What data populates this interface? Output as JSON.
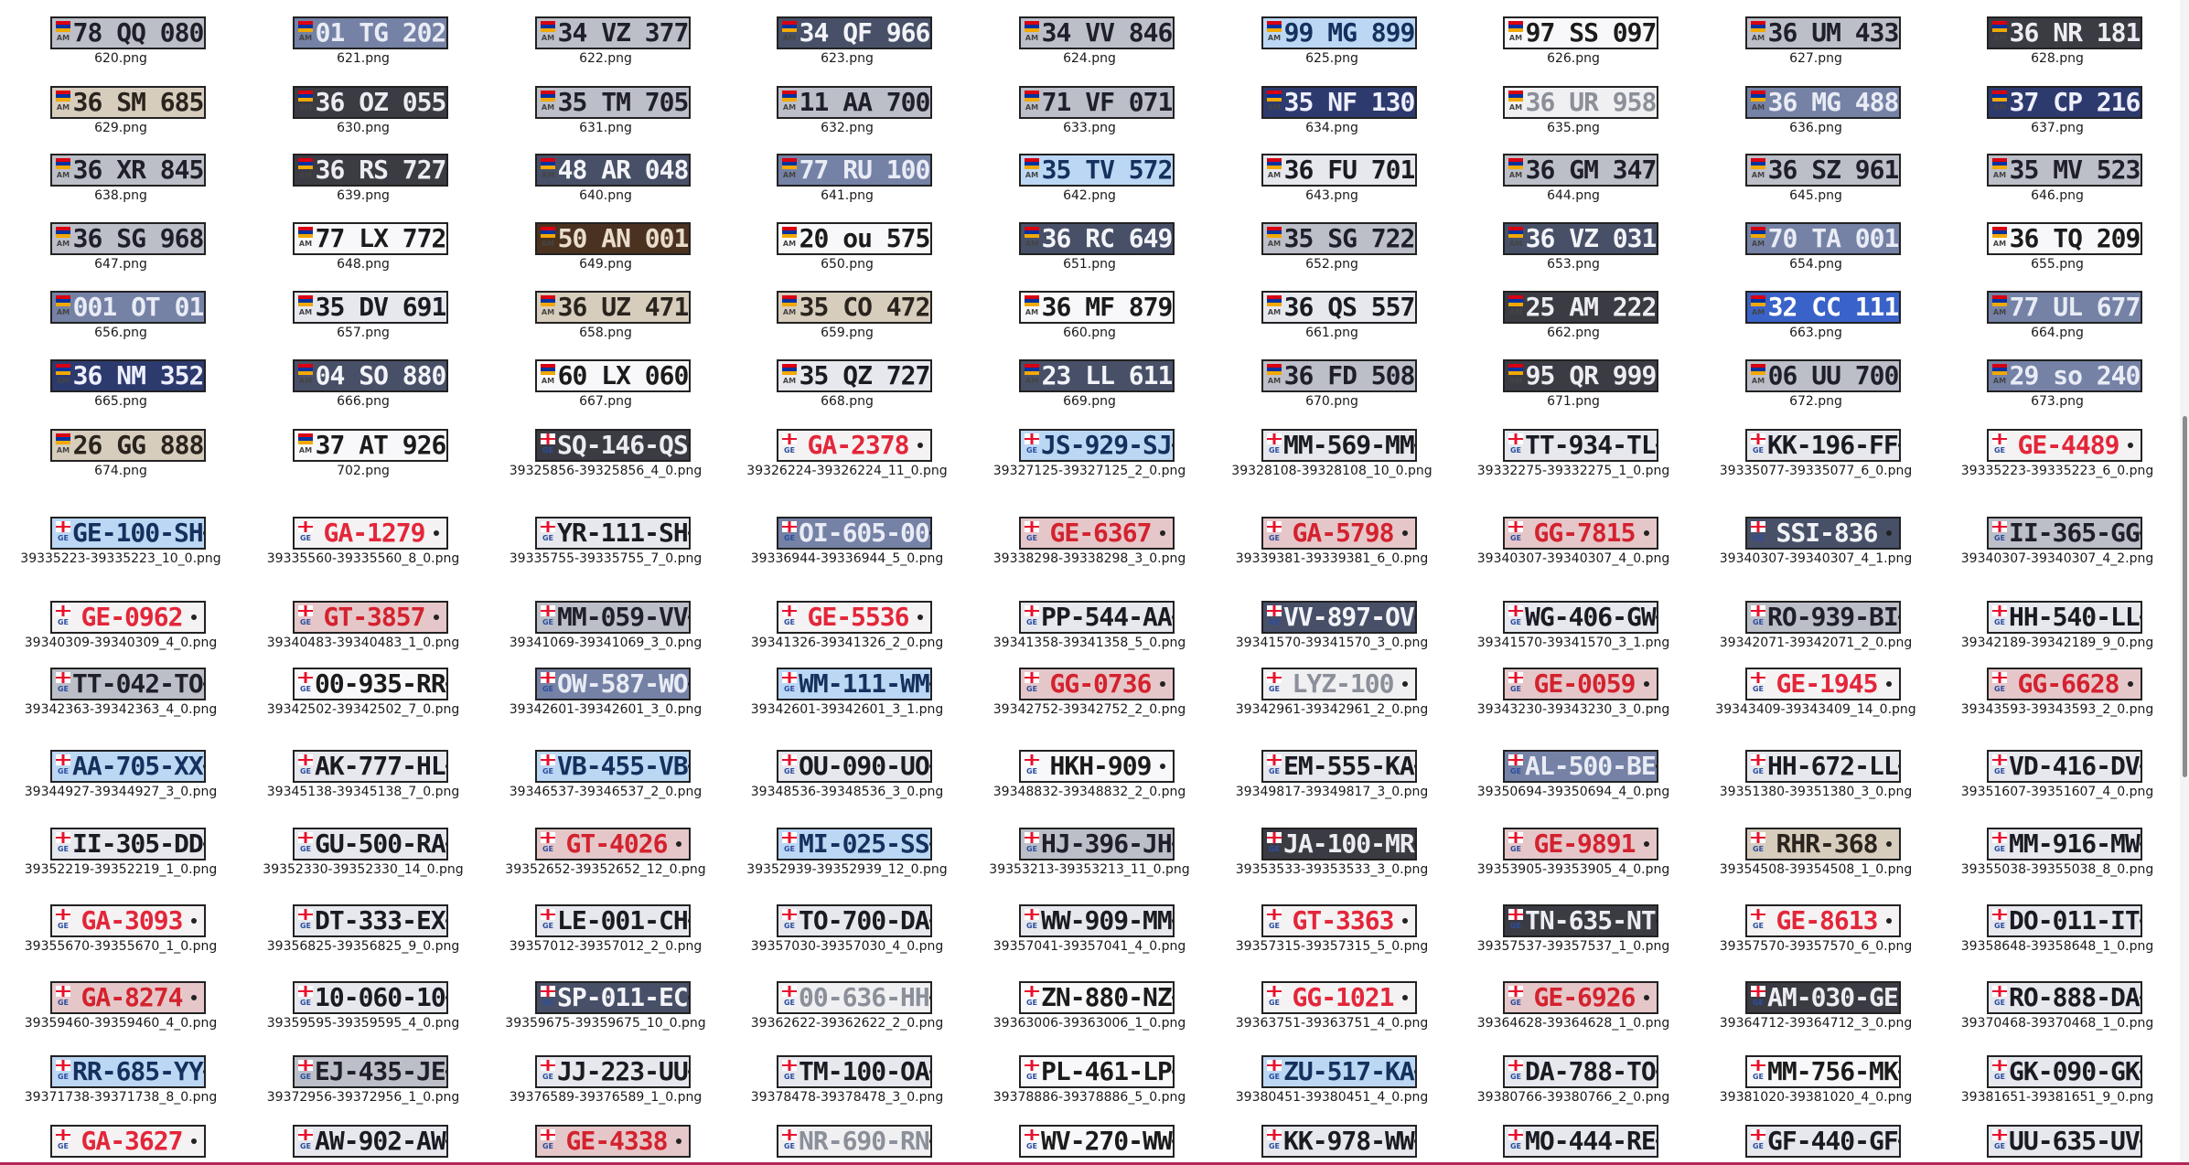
{
  "colors": {
    "gray": [
      "#bcbfc8",
      "#1f1f2a"
    ],
    "dark": [
      "#3b3b44",
      "#ececf2"
    ],
    "navy": [
      "#2d3a6e",
      "#eef0ff"
    ],
    "blue": [
      "#3a63c9",
      "#ffffff"
    ],
    "light": [
      "#e6e8ee",
      "#1a1a22"
    ],
    "white": [
      "#f8f8fa",
      "#1b1b1b"
    ],
    "brown": [
      "#4b3220",
      "#e9dccb"
    ],
    "beige": [
      "#d7cdbd",
      "#2a241e"
    ],
    "red": [
      "#f4f2f2",
      "#e3263a"
    ],
    "redpink": [
      "#e6c7c9",
      "#d3222f"
    ],
    "lightgray": [
      "#f0f0f2",
      "#8b8f99"
    ],
    "steel": [
      "#7582a6",
      "#e9ecf5"
    ],
    "slate": [
      "#485068",
      "#f3f4f8"
    ],
    "sky": [
      "#bcd7f4",
      "#14305c"
    ]
  },
  "rows": [
    [
      [
        "78 QQ 080",
        "620.png",
        "am",
        "gray"
      ],
      [
        "01 TG 202",
        "621.png",
        "am",
        "steel"
      ],
      [
        "34 VZ 377",
        "622.png",
        "am",
        "gray"
      ],
      [
        "34 QF 966",
        "623.png",
        "am",
        "slate"
      ],
      [
        "34 VV 846",
        "624.png",
        "am",
        "gray"
      ],
      [
        "99 MG 899",
        "625.png",
        "am",
        "sky"
      ],
      [
        "97 SS 097",
        "626.png",
        "am",
        "white"
      ],
      [
        "36 UM 433",
        "627.png",
        "am",
        "gray"
      ],
      [
        "36 NR 181",
        "628.png",
        "am",
        "dark"
      ]
    ],
    [
      [
        "36 SM 685",
        "629.png",
        "am",
        "beige"
      ],
      [
        "36 OZ 055",
        "630.png",
        "am",
        "dark"
      ],
      [
        "35 TM 705",
        "631.png",
        "am",
        "gray"
      ],
      [
        "11 AA 700",
        "632.png",
        "am",
        "gray"
      ],
      [
        "71 VF 071",
        "633.png",
        "am",
        "gray"
      ],
      [
        "35 NF 130",
        "634.png",
        "am",
        "navy"
      ],
      [
        "36 UR 958",
        "635.png",
        "am",
        "lightgray"
      ],
      [
        "36 MG 488",
        "636.png",
        "am",
        "steel"
      ],
      [
        "37 CP 216",
        "637.png",
        "am",
        "navy"
      ]
    ],
    [
      [
        "36 XR 845",
        "638.png",
        "am",
        "gray"
      ],
      [
        "36 RS 727",
        "639.png",
        "am",
        "dark"
      ],
      [
        "48 AR 048",
        "640.png",
        "am",
        "slate"
      ],
      [
        "77 RU 100",
        "641.png",
        "am",
        "steel"
      ],
      [
        "35 TV 572",
        "642.png",
        "am",
        "sky"
      ],
      [
        "36 FU 701",
        "643.png",
        "am",
        "light"
      ],
      [
        "36 GM 347",
        "644.png",
        "am",
        "gray"
      ],
      [
        "36 SZ 961",
        "645.png",
        "am",
        "gray"
      ],
      [
        "35 MV 523",
        "646.png",
        "am",
        "gray"
      ]
    ],
    [
      [
        "36 SG 968",
        "647.png",
        "am",
        "gray"
      ],
      [
        "77 LX 772",
        "648.png",
        "am",
        "white"
      ],
      [
        "50 AN 001",
        "649.png",
        "am",
        "brown"
      ],
      [
        "20 ou 575",
        "650.png",
        "am",
        "white"
      ],
      [
        "36 RC 649",
        "651.png",
        "am",
        "slate"
      ],
      [
        "35 SG 722",
        "652.png",
        "am",
        "gray"
      ],
      [
        "36 VZ 031",
        "653.png",
        "am",
        "slate"
      ],
      [
        "70 TA 001",
        "654.png",
        "am",
        "steel"
      ],
      [
        "36 TQ 209",
        "655.png",
        "am",
        "white"
      ]
    ],
    [
      [
        "001 OT 01",
        "656.png",
        "am",
        "steel"
      ],
      [
        "35 DV 691",
        "657.png",
        "am",
        "light"
      ],
      [
        "36 UZ 471",
        "658.png",
        "am",
        "beige"
      ],
      [
        "35 CO 472",
        "659.png",
        "am",
        "beige"
      ],
      [
        "36 MF 879",
        "660.png",
        "am",
        "white"
      ],
      [
        "36 QS 557",
        "661.png",
        "am",
        "light"
      ],
      [
        "25 AM 222",
        "662.png",
        "am",
        "dark"
      ],
      [
        "32 CC 111",
        "663.png",
        "am",
        "blue"
      ],
      [
        "77 UL 677",
        "664.png",
        "am",
        "steel"
      ]
    ],
    [
      [
        "36 NM 352",
        "665.png",
        "am",
        "navy"
      ],
      [
        "04 SO 880",
        "666.png",
        "am",
        "slate"
      ],
      [
        "60 LX 060",
        "667.png",
        "am",
        "white"
      ],
      [
        "35 QZ 727",
        "668.png",
        "am",
        "light"
      ],
      [
        "23 LL 611",
        "669.png",
        "am",
        "slate"
      ],
      [
        "36 FD 508",
        "670.png",
        "am",
        "gray"
      ],
      [
        "95 QR 999",
        "671.png",
        "am",
        "dark"
      ],
      [
        "06 UU 700",
        "672.png",
        "am",
        "gray"
      ],
      [
        "29 so 240",
        "673.png",
        "am",
        "steel"
      ]
    ],
    [
      [
        "26 GG 888",
        "674.png",
        "am",
        "beige"
      ],
      [
        "37 AT 926",
        "702.png",
        "am",
        "white"
      ],
      [
        "SQ-146-QS",
        "39325856-39325856_4_0.png",
        "ge",
        "dark"
      ],
      [
        "GA-2378",
        "39326224-39326224_11_0.png",
        "ge",
        "red"
      ],
      [
        "JS-929-SJ",
        "39327125-39327125_2_0.png",
        "ge",
        "sky"
      ],
      [
        "MM-569-MM",
        "39328108-39328108_10_0.png",
        "ge",
        "light"
      ],
      [
        "TT-934-TL",
        "39332275-39332275_1_0.png",
        "ge",
        "light"
      ],
      [
        "KK-196-FF",
        "39335077-39335077_6_0.png",
        "ge",
        "light"
      ],
      [
        "GE-4489",
        "39335223-39335223_6_0.png",
        "ge",
        "red"
      ]
    ],
    [
      [
        "GE-100-SH",
        "39335223-39335223_10_0.png",
        "ge",
        "sky"
      ],
      [
        "GA-1279",
        "39335560-39335560_8_0.png",
        "ge",
        "red"
      ],
      [
        "YR-111-SH",
        "39335755-39335755_7_0.png",
        "ge",
        "light"
      ],
      [
        "OI-605-00",
        "39336944-39336944_5_0.png",
        "ge",
        "steel"
      ],
      [
        "GE-6367",
        "39338298-39338298_3_0.png",
        "ge",
        "redpink"
      ],
      [
        "GA-5798",
        "39339381-39339381_6_0.png",
        "ge",
        "redpink"
      ],
      [
        "GG-7815",
        "39340307-39340307_4_0.png",
        "ge",
        "redpink"
      ],
      [
        "SSI-836",
        "39340307-39340307_4_1.png",
        "ge",
        "slate"
      ],
      [
        "II-365-GG",
        "39340307-39340307_4_2.png",
        "ge",
        "gray"
      ]
    ],
    [
      [
        "GE-0962",
        "39340309-39340309_4_0.png",
        "ge",
        "red"
      ],
      [
        "GT-3857",
        "39340483-39340483_1_0.png",
        "ge",
        "redpink"
      ],
      [
        "MM-059-VV",
        "39341069-39341069_3_0.png",
        "ge",
        "gray"
      ],
      [
        "GE-5536",
        "39341326-39341326_2_0.png",
        "ge",
        "red"
      ],
      [
        "PP-544-AA",
        "39341358-39341358_5_0.png",
        "ge",
        "light"
      ],
      [
        "VV-897-OV",
        "39341570-39341570_3_0.png",
        "ge",
        "slate"
      ],
      [
        "WG-406-GW",
        "39341570-39341570_3_1.png",
        "ge",
        "light"
      ],
      [
        "RO-939-BI",
        "39342071-39342071_2_0.png",
        "ge",
        "gray"
      ],
      [
        "HH-540-LL",
        "39342189-39342189_9_0.png",
        "ge",
        "light"
      ]
    ],
    [
      [
        "TT-042-TO",
        "39342363-39342363_4_0.png",
        "ge",
        "gray"
      ],
      [
        "00-935-RR",
        "39342502-39342502_7_0.png",
        "ge",
        "white"
      ],
      [
        "OW-587-WO",
        "39342601-39342601_3_0.png",
        "ge",
        "steel"
      ],
      [
        "WM-111-WM",
        "39342601-39342601_3_1.png",
        "ge",
        "sky"
      ],
      [
        "GG-0736",
        "39342752-39342752_2_0.png",
        "ge",
        "redpink"
      ],
      [
        "LYZ-100",
        "39342961-39342961_2_0.png",
        "ge",
        "lightgray"
      ],
      [
        "GE-0059",
        "39343230-39343230_3_0.png",
        "ge",
        "redpink"
      ],
      [
        "GE-1945",
        "39343409-39343409_14_0.png",
        "ge",
        "red"
      ],
      [
        "GG-6628",
        "39343593-39343593_2_0.png",
        "ge",
        "redpink"
      ]
    ],
    [
      [
        "AA-705-XX",
        "39344927-39344927_3_0.png",
        "ge",
        "sky"
      ],
      [
        "AK-777-HL",
        "39345138-39345138_7_0.png",
        "ge",
        "light"
      ],
      [
        "VB-455-VB",
        "39346537-39346537_2_0.png",
        "ge",
        "sky"
      ],
      [
        "OU-090-UO",
        "39348536-39348536_3_0.png",
        "ge",
        "light"
      ],
      [
        "HKH-909",
        "39348832-39348832_2_0.png",
        "ge",
        "white"
      ],
      [
        "EM-555-KA",
        "39349817-39349817_3_0.png",
        "ge",
        "light"
      ],
      [
        "AL-500-BE",
        "39350694-39350694_4_0.png",
        "ge",
        "steel"
      ],
      [
        "HH-672-LL",
        "39351380-39351380_3_0.png",
        "ge",
        "light"
      ],
      [
        "VD-416-DV",
        "39351607-39351607_4_0.png",
        "ge",
        "light"
      ]
    ],
    [
      [
        "II-305-DD",
        "39352219-39352219_1_0.png",
        "ge",
        "light"
      ],
      [
        "GU-500-RA",
        "39352330-39352330_14_0.png",
        "ge",
        "light"
      ],
      [
        "GT-4026",
        "39352652-39352652_12_0.png",
        "ge",
        "redpink"
      ],
      [
        "MI-025-SS",
        "39352939-39352939_12_0.png",
        "ge",
        "sky"
      ],
      [
        "HJ-396-JH",
        "39353213-39353213_11_0.png",
        "ge",
        "gray"
      ],
      [
        "JA-100-MR",
        "39353533-39353533_3_0.png",
        "ge",
        "dark"
      ],
      [
        "GE-9891",
        "39353905-39353905_4_0.png",
        "ge",
        "redpink"
      ],
      [
        "RHR-368",
        "39354508-39354508_1_0.png",
        "ge",
        "beige"
      ],
      [
        "MM-916-MW",
        "39355038-39355038_8_0.png",
        "ge",
        "light"
      ]
    ],
    [
      [
        "GA-3093",
        "39355670-39355670_1_0.png",
        "ge",
        "red"
      ],
      [
        "DT-333-EX",
        "39356825-39356825_9_0.png",
        "ge",
        "light"
      ],
      [
        "LE-001-CH",
        "39357012-39357012_2_0.png",
        "ge",
        "light"
      ],
      [
        "TO-700-DA",
        "39357030-39357030_4_0.png",
        "ge",
        "light"
      ],
      [
        "WW-909-MM",
        "39357041-39357041_4_0.png",
        "ge",
        "light"
      ],
      [
        "GT-3363",
        "39357315-39357315_5_0.png",
        "ge",
        "red"
      ],
      [
        "TN-635-NT",
        "39357537-39357537_1_0.png",
        "ge",
        "dark"
      ],
      [
        "GE-8613",
        "39357570-39357570_6_0.png",
        "ge",
        "red"
      ],
      [
        "DO-011-IT",
        "39358648-39358648_1_0.png",
        "ge",
        "light"
      ]
    ],
    [
      [
        "GA-8274",
        "39359460-39359460_4_0.png",
        "ge",
        "redpink"
      ],
      [
        "10-060-10",
        "39359595-39359595_4_0.png",
        "ge",
        "light"
      ],
      [
        "SP-011-EC",
        "39359675-39359675_10_0.png",
        "ge",
        "slate"
      ],
      [
        "00-636-HH",
        "39362622-39362622_2_0.png",
        "ge",
        "lightgray"
      ],
      [
        "ZN-880-NZ",
        "39363006-39363006_1_0.png",
        "ge",
        "white"
      ],
      [
        "GG-1021",
        "39363751-39363751_4_0.png",
        "ge",
        "red"
      ],
      [
        "GE-6926",
        "39364628-39364628_1_0.png",
        "ge",
        "redpink"
      ],
      [
        "AM-030-GE",
        "39364712-39364712_3_0.png",
        "ge",
        "dark"
      ],
      [
        "RO-888-DA",
        "39370468-39370468_1_0.png",
        "ge",
        "light"
      ]
    ],
    [
      [
        "RR-685-YY",
        "39371738-39371738_8_0.png",
        "ge",
        "sky"
      ],
      [
        "EJ-435-JE",
        "39372956-39372956_1_0.png",
        "ge",
        "gray"
      ],
      [
        "JJ-223-UU",
        "39376589-39376589_1_0.png",
        "ge",
        "light"
      ],
      [
        "TM-100-OA",
        "39378478-39378478_3_0.png",
        "ge",
        "light"
      ],
      [
        "PL-461-LP",
        "39378886-39378886_5_0.png",
        "ge",
        "white"
      ],
      [
        "ZU-517-KA",
        "39380451-39380451_4_0.png",
        "ge",
        "sky"
      ],
      [
        "DA-788-TO",
        "39380766-39380766_2_0.png",
        "ge",
        "light"
      ],
      [
        "MM-756-MK",
        "39381020-39381020_4_0.png",
        "ge",
        "white"
      ],
      [
        "GK-090-GK",
        "39381651-39381651_9_0.png",
        "ge",
        "light"
      ]
    ],
    [
      [
        "GA-3627",
        "",
        "ge",
        "red"
      ],
      [
        "AW-902-AW",
        "",
        "ge",
        "light"
      ],
      [
        "GE-4338",
        "",
        "ge",
        "redpink"
      ],
      [
        "NR-690-RN",
        "",
        "ge",
        "lightgray"
      ],
      [
        "WV-270-WW",
        "",
        "ge",
        "white"
      ],
      [
        "KK-978-WW",
        "",
        "ge",
        "light"
      ],
      [
        "MO-444-RE",
        "",
        "ge",
        "light"
      ],
      [
        "GF-440-GF",
        "",
        "ge",
        "light"
      ],
      [
        "UU-635-UV",
        "",
        "ge",
        "light"
      ]
    ]
  ]
}
